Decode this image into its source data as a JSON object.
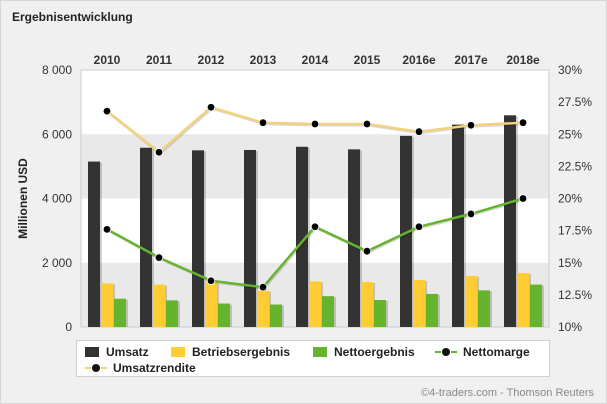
{
  "title": "Ergebnisentwicklung",
  "credit": "©4-traders.com - Thomson Reuters",
  "colors": {
    "umsatz": "#333333",
    "betriebsergebnis": "#ffcc33",
    "nettoergebnis": "#66b32e",
    "nettomarge": "#66b32e",
    "umsatzrendite": "#f2d27a",
    "marker": "#000000"
  },
  "chart_data": {
    "type": "bar",
    "categories": [
      "2010",
      "2011",
      "2012",
      "2013",
      "2014",
      "2015",
      "2016e",
      "2017e",
      "2018e"
    ],
    "ylabel": "Millionen USD",
    "ylim": [
      0,
      8000
    ],
    "yticks": [
      "0",
      "2 000",
      "4 000",
      "6 000",
      "8 000"
    ],
    "y2lim": [
      10,
      30
    ],
    "y2ticks": [
      "10%",
      "12.5%",
      "15%",
      "17.5%",
      "20%",
      "22.5%",
      "25%",
      "27.5%",
      "30%"
    ],
    "legend_position": "bottom",
    "series": [
      {
        "name": "Umsatz",
        "type": "bar",
        "axis": "left",
        "color": "#333333",
        "values": [
          5150,
          5580,
          5500,
          5510,
          5610,
          5530,
          5950,
          6300,
          6590
        ]
      },
      {
        "name": "Betriebsergebnis",
        "type": "bar",
        "axis": "left",
        "color": "#ffcc33",
        "values": [
          1360,
          1320,
          1390,
          1130,
          1420,
          1400,
          1460,
          1590,
          1680
        ]
      },
      {
        "name": "Nettoergebnis",
        "type": "bar",
        "axis": "left",
        "color": "#66b32e",
        "values": [
          880,
          830,
          730,
          700,
          960,
          840,
          1030,
          1140,
          1320
        ]
      },
      {
        "name": "Nettomarge",
        "type": "line",
        "axis": "right",
        "color": "#66b32e",
        "values": [
          17.6,
          15.4,
          13.6,
          13.1,
          17.8,
          15.9,
          17.8,
          18.8,
          20.0
        ]
      },
      {
        "name": "Umsatzrendite",
        "type": "line",
        "axis": "right",
        "color": "#f2d27a",
        "values": [
          26.8,
          23.6,
          27.1,
          25.9,
          25.8,
          25.8,
          25.2,
          25.7,
          25.9
        ]
      }
    ]
  },
  "legend": [
    {
      "label": "Umsatz",
      "kind": "bar",
      "color": "#333333"
    },
    {
      "label": "Betriebsergebnis",
      "kind": "bar",
      "color": "#ffcc33"
    },
    {
      "label": "Nettoergebnis",
      "kind": "bar",
      "color": "#66b32e"
    },
    {
      "label": "Nettomarge",
      "kind": "line",
      "color": "#66b32e"
    },
    {
      "label": "Umsatzrendite",
      "kind": "line",
      "color": "#f2d27a"
    }
  ]
}
